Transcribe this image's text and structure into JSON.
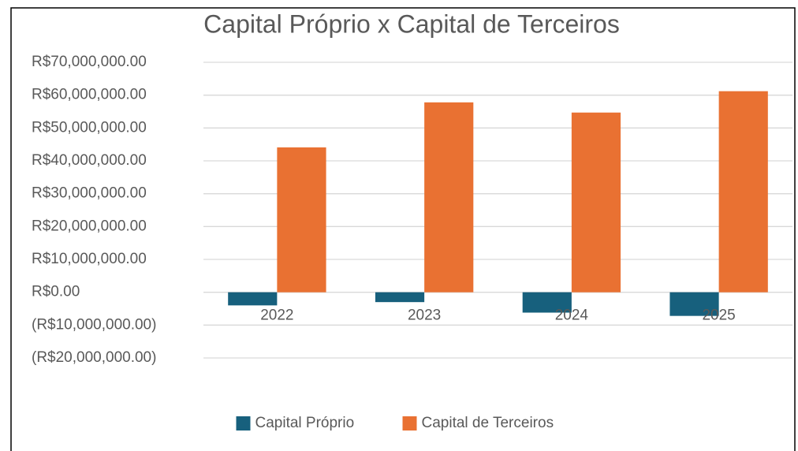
{
  "chart_data": {
    "type": "bar",
    "title": "Capital Próprio x Capital de Terceiros",
    "categories": [
      "2022",
      "2023",
      "2024",
      "2025"
    ],
    "series": [
      {
        "name": "Capital Próprio",
        "color": "#17607d",
        "values": [
          -4000000,
          -3000000,
          -6200000,
          -7200000
        ]
      },
      {
        "name": "Capital de Terceiros",
        "color": "#e97132",
        "values": [
          44100000,
          57800000,
          54700000,
          61200000
        ]
      }
    ],
    "ylim": [
      -20000000,
      70000000
    ],
    "yticks": [
      {
        "value": -20000000,
        "label": "(R$20,000,000.00)"
      },
      {
        "value": -10000000,
        "label": "(R$10,000,000.00)"
      },
      {
        "value": 0,
        "label": "R$0.00"
      },
      {
        "value": 10000000,
        "label": "R$10,000,000.00"
      },
      {
        "value": 20000000,
        "label": "R$20,000,000.00"
      },
      {
        "value": 30000000,
        "label": "R$30,000,000.00"
      },
      {
        "value": 40000000,
        "label": "R$40,000,000.00"
      },
      {
        "value": 50000000,
        "label": "R$50,000,000.00"
      },
      {
        "value": 60000000,
        "label": "R$60,000,000.00"
      },
      {
        "value": 70000000,
        "label": "R$70,000,000.00"
      }
    ],
    "grid": true,
    "legend": "bottom"
  }
}
